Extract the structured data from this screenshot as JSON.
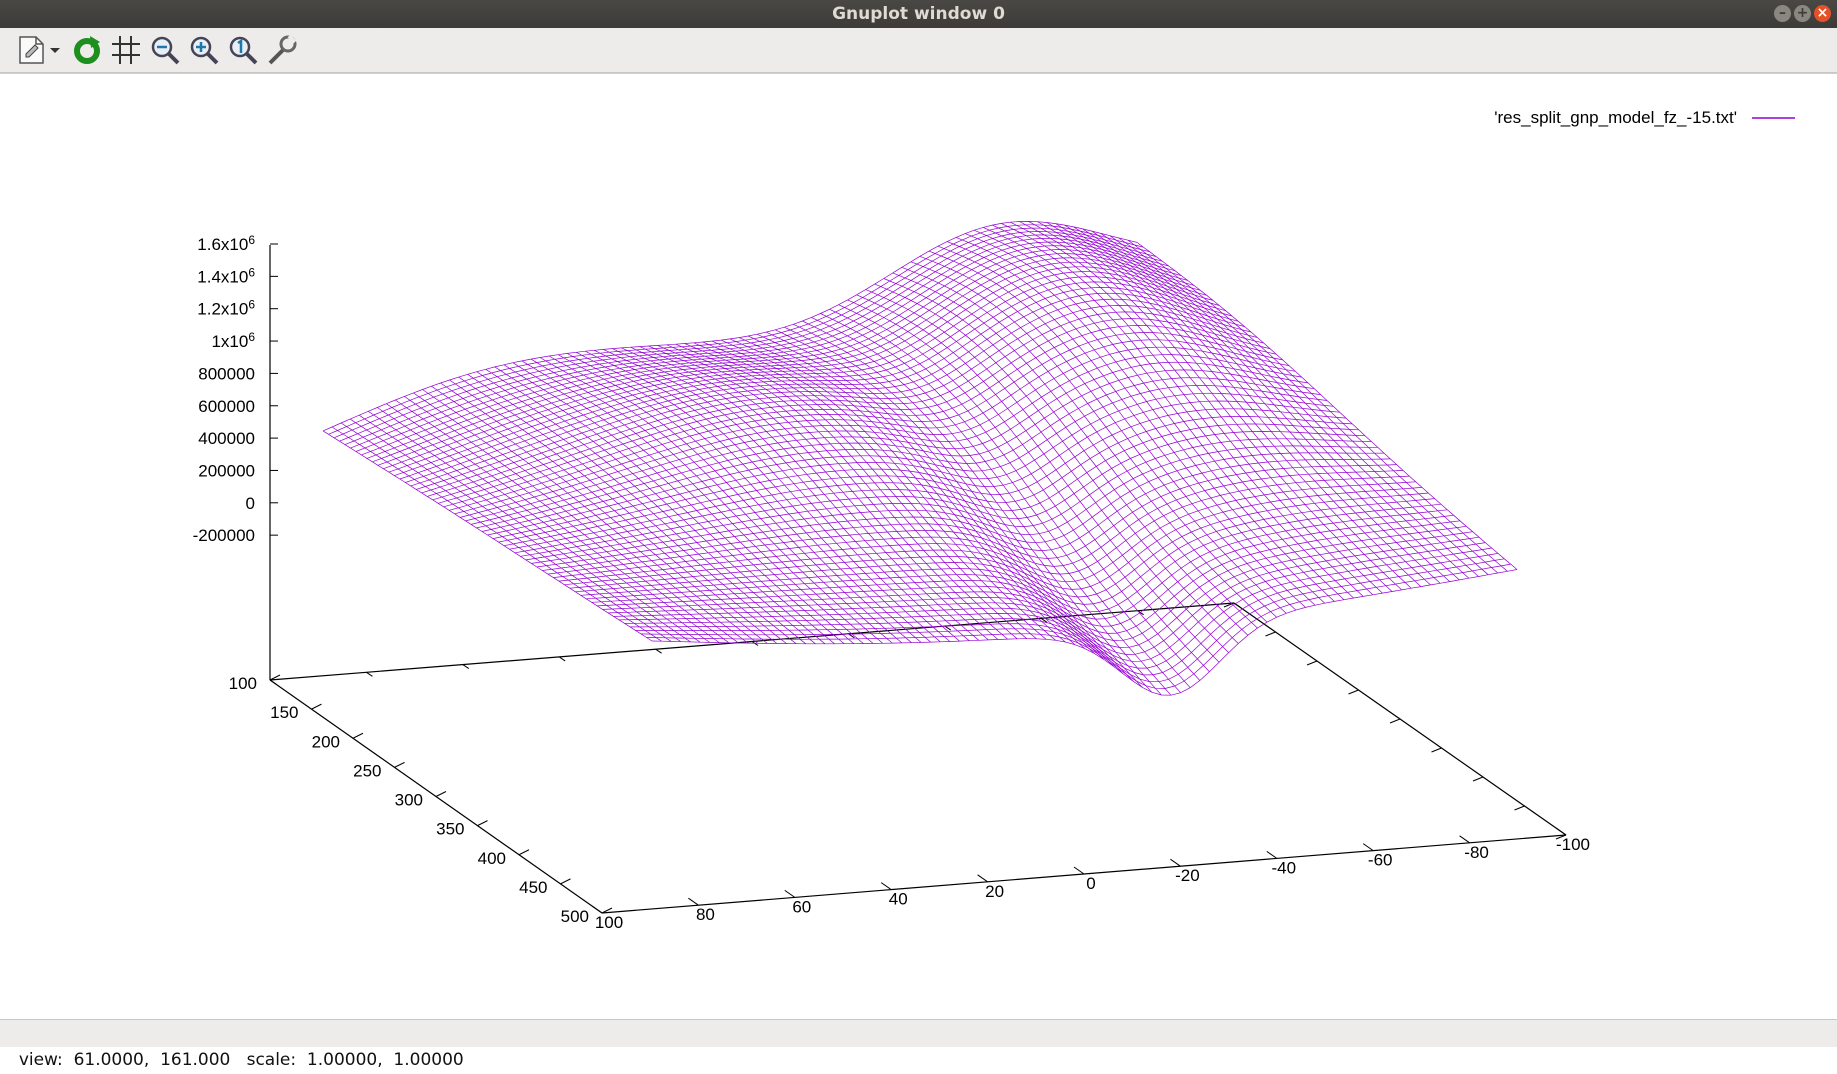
{
  "window": {
    "title": "Gnuplot window 0",
    "buttons": {
      "minimize": "–",
      "maximize": "+",
      "close": "×"
    }
  },
  "toolbar": {
    "items": [
      {
        "icon": "export-icon"
      },
      {
        "icon": "replot-icon"
      },
      {
        "icon": "grid-icon"
      },
      {
        "icon": "zoom-out-icon"
      },
      {
        "icon": "zoom-in-icon"
      },
      {
        "icon": "zoom-original-icon"
      },
      {
        "icon": "settings-icon"
      }
    ]
  },
  "status": {
    "text": "view:  61.0000,  161.000   scale:  1.00000,  1.00000"
  },
  "chart_data": {
    "type": "surface",
    "style": "wireframe",
    "series": [
      {
        "name": "'res_split_gnp_model_fz_-15.txt'",
        "color": "#9400d3"
      }
    ],
    "legend_position": "top-right",
    "view": {
      "rot_x": 61.0,
      "rot_z": 161.0,
      "scale": [
        1.0,
        1.0
      ]
    },
    "z_ticks": [
      "1.6x10⁶",
      "1.4x10⁶",
      "1.2x10⁶",
      "1x10⁶",
      "800000",
      "600000",
      "400000",
      "200000",
      "0",
      "-200000"
    ],
    "y_ticks": [
      "100",
      "150",
      "200",
      "250",
      "300",
      "350",
      "400",
      "450",
      "500"
    ],
    "x_ticks": [
      "100",
      "80",
      "60",
      "40",
      "20",
      "0",
      "-20",
      "-40",
      "-60",
      "-80",
      "-100"
    ],
    "zlim": [
      -200000,
      1600000
    ],
    "ylim": [
      100,
      500
    ],
    "xlim": [
      -100,
      100
    ]
  }
}
